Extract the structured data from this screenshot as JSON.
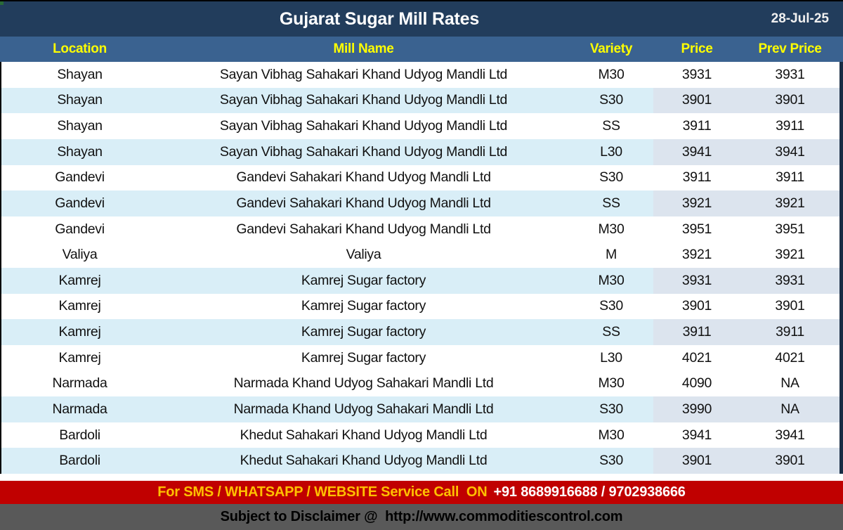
{
  "titlebar": {
    "title": "Gujarat Sugar Mill Rates",
    "date": "28-Jul-25"
  },
  "table": {
    "columns": [
      {
        "key": "location",
        "label": "Location"
      },
      {
        "key": "mill",
        "label": "Mill Name"
      },
      {
        "key": "variety",
        "label": "Variety"
      },
      {
        "key": "price",
        "label": "Price"
      },
      {
        "key": "prev_price",
        "label": "Prev Price"
      }
    ],
    "rows": [
      {
        "location": "Shayan",
        "mill": "Sayan Vibhag Sahakari Khand Udyog Mandli Ltd",
        "variety": "M30",
        "price": "3931",
        "prev_price": "3931",
        "shaded": false
      },
      {
        "location": "Shayan",
        "mill": "Sayan Vibhag Sahakari Khand Udyog Mandli Ltd",
        "variety": "S30",
        "price": "3901",
        "prev_price": "3901",
        "shaded": true
      },
      {
        "location": "Shayan",
        "mill": "Sayan Vibhag Sahakari Khand Udyog Mandli Ltd",
        "variety": "SS",
        "price": "3911",
        "prev_price": "3911",
        "shaded": false
      },
      {
        "location": "Shayan",
        "mill": "Sayan Vibhag Sahakari Khand Udyog Mandli Ltd",
        "variety": "L30",
        "price": "3941",
        "prev_price": "3941",
        "shaded": true
      },
      {
        "location": "Gandevi",
        "mill": "Gandevi Sahakari Khand Udyog Mandli Ltd",
        "variety": "S30",
        "price": "3911",
        "prev_price": "3911",
        "shaded": false
      },
      {
        "location": "Gandevi",
        "mill": "Gandevi Sahakari Khand Udyog Mandli Ltd",
        "variety": "SS",
        "price": "3921",
        "prev_price": "3921",
        "shaded": true
      },
      {
        "location": "Gandevi",
        "mill": "Gandevi Sahakari Khand Udyog Mandli Ltd",
        "variety": "M30",
        "price": "3951",
        "prev_price": "3951",
        "shaded": false
      },
      {
        "location": "Valiya",
        "mill": "Valiya",
        "variety": "M",
        "price": "3921",
        "prev_price": "3921",
        "shaded": false
      },
      {
        "location": "Kamrej",
        "mill": "Kamrej Sugar factory",
        "variety": "M30",
        "price": "3931",
        "prev_price": "3931",
        "shaded": true
      },
      {
        "location": "Kamrej",
        "mill": "Kamrej Sugar factory",
        "variety": "S30",
        "price": "3901",
        "prev_price": "3901",
        "shaded": false
      },
      {
        "location": "Kamrej",
        "mill": "Kamrej Sugar factory",
        "variety": "SS",
        "price": "3911",
        "prev_price": "3911",
        "shaded": true
      },
      {
        "location": "Kamrej",
        "mill": "Kamrej Sugar factory",
        "variety": "L30",
        "price": "4021",
        "prev_price": "4021",
        "shaded": false
      },
      {
        "location": "Narmada",
        "mill": "Narmada Khand Udyog Sahakari Mandli Ltd",
        "variety": "M30",
        "price": "4090",
        "prev_price": "NA",
        "shaded": false
      },
      {
        "location": "Narmada",
        "mill": "Narmada Khand Udyog Sahakari Mandli Ltd",
        "variety": "S30",
        "price": "3990",
        "prev_price": "NA",
        "shaded": true
      },
      {
        "location": "Bardoli",
        "mill": "Khedut Sahakari Khand Udyog Mandli Ltd",
        "variety": "M30",
        "price": "3941",
        "prev_price": "3941",
        "shaded": false
      },
      {
        "location": "Bardoli",
        "mill": "Khedut Sahakari Khand Udyog Mandli Ltd",
        "variety": "S30",
        "price": "3901",
        "prev_price": "3901",
        "shaded": true
      }
    ]
  },
  "footer": {
    "sms_prefix": "For SMS / WHATSAPP / WEBSITE Service Call  ON",
    "sms_numbers": "+91 8689916688 / 9702938666",
    "disclaimer": "Subject to Disclaimer @  http://www.commoditiescontrol.com"
  },
  "colors": {
    "titlebar_bg": "#223D5C",
    "header_bg": "#3A6290",
    "header_text": "#FFFF00",
    "title_text": "#FFFFFF",
    "date_text": "#F0F0F0",
    "row_shaded": "#D9EEF7",
    "row_shaded_price": "#DCE4EE",
    "row_text": "#111111",
    "sms_bar_bg": "#C00000",
    "sms_prefix_text": "#FFC000",
    "sms_numbers_text": "#FFFFFF",
    "disclaimer_bg": "#595959",
    "disclaimer_text": "#000000",
    "table_right_border": "#182C44",
    "corner_dot": "#2A6B38"
  }
}
